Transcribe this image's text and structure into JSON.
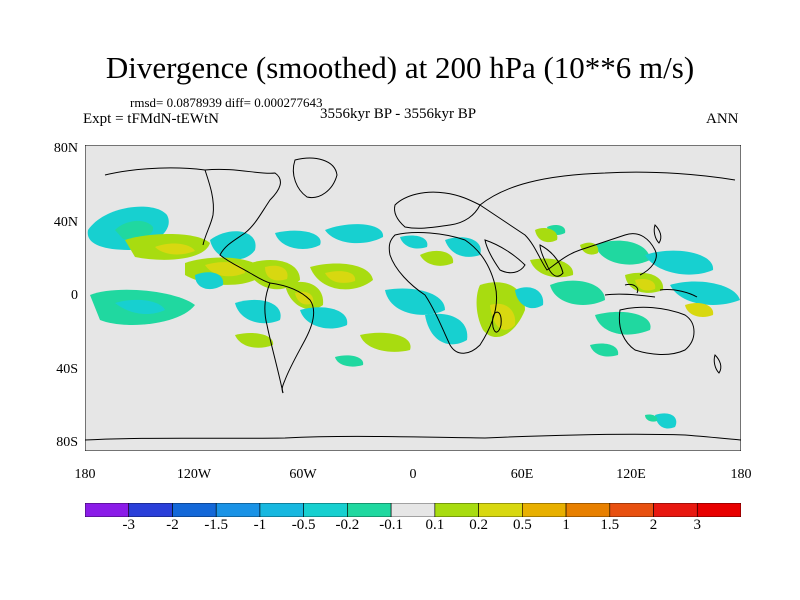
{
  "title": "Divergence (smoothed) at 200 hPa (10**6 m/s)",
  "stats": "rmsd= 0.0878939 diff= 0.000277643",
  "experiment": "Expt = tFMdN-tEWtN",
  "period": "3556kyr BP - 3556kyr BP",
  "season": "ANN",
  "y_ticks": [
    "80N",
    "40N",
    "0",
    "40S",
    "80S"
  ],
  "x_ticks": [
    "180",
    "120W",
    "60W",
    "0",
    "60E",
    "120E",
    "180"
  ],
  "colorbar": {
    "labels": [
      "-3",
      "-2",
      "-1.5",
      "-1",
      "-0.5",
      "-0.2",
      "-0.1",
      "0.1",
      "0.2",
      "0.5",
      "1",
      "1.5",
      "2",
      "3"
    ],
    "colors": [
      "#8b1ce8",
      "#2a3fd9",
      "#1468d8",
      "#1a93e6",
      "#18b8e0",
      "#17d0d0",
      "#20d8a0",
      "#e6e6e6",
      "#a8dc10",
      "#d8d810",
      "#e8b000",
      "#e88000",
      "#e85010",
      "#e81810",
      "#e80000"
    ]
  },
  "map": {
    "background": "#e6e6e6",
    "legend_colors": {
      "neg_0_1": "#20d8a0",
      "neg_0_2": "#17d0d0",
      "pos_0_1": "#a8dc10",
      "pos_0_2": "#d8d810"
    }
  }
}
